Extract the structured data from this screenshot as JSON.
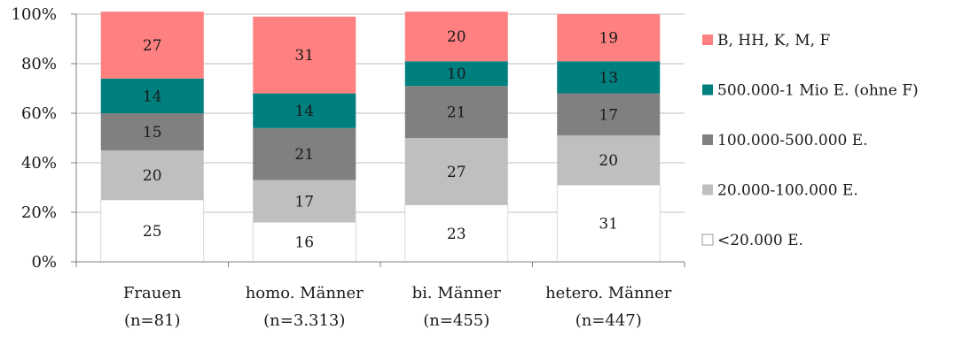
{
  "chart_data": {
    "type": "bar",
    "stacked": true,
    "percent": true,
    "categories": [
      [
        "Frauen",
        "(n=81)"
      ],
      [
        "homo. Männer",
        "(n=3.313)"
      ],
      [
        "bi. Männer",
        "(n=455)"
      ],
      [
        "hetero. Männer",
        "(n=447)"
      ]
    ],
    "series": [
      {
        "name": "<20.000 E.",
        "color": "#ffffff",
        "values": [
          25,
          16,
          23,
          31
        ]
      },
      {
        "name": "20.000-100.000 E.",
        "color": "#bfbfbf",
        "values": [
          20,
          17,
          27,
          20
        ]
      },
      {
        "name": "100.000-500.000 E.",
        "color": "#808080",
        "values": [
          15,
          21,
          21,
          17
        ]
      },
      {
        "name": "500.000-1 Mio E. (ohne F)",
        "color": "#007f7f",
        "values": [
          14,
          14,
          10,
          13
        ]
      },
      {
        "name": "B, HH, K, M, F",
        "color": "#ff8080",
        "values": [
          27,
          31,
          20,
          19
        ]
      }
    ],
    "yticks": [
      "0%",
      "20%",
      "40%",
      "60%",
      "80%",
      "100%"
    ],
    "ylim": [
      0,
      100
    ],
    "grid": true,
    "legend": "right",
    "title": "",
    "xlabel": "",
    "ylabel": ""
  }
}
